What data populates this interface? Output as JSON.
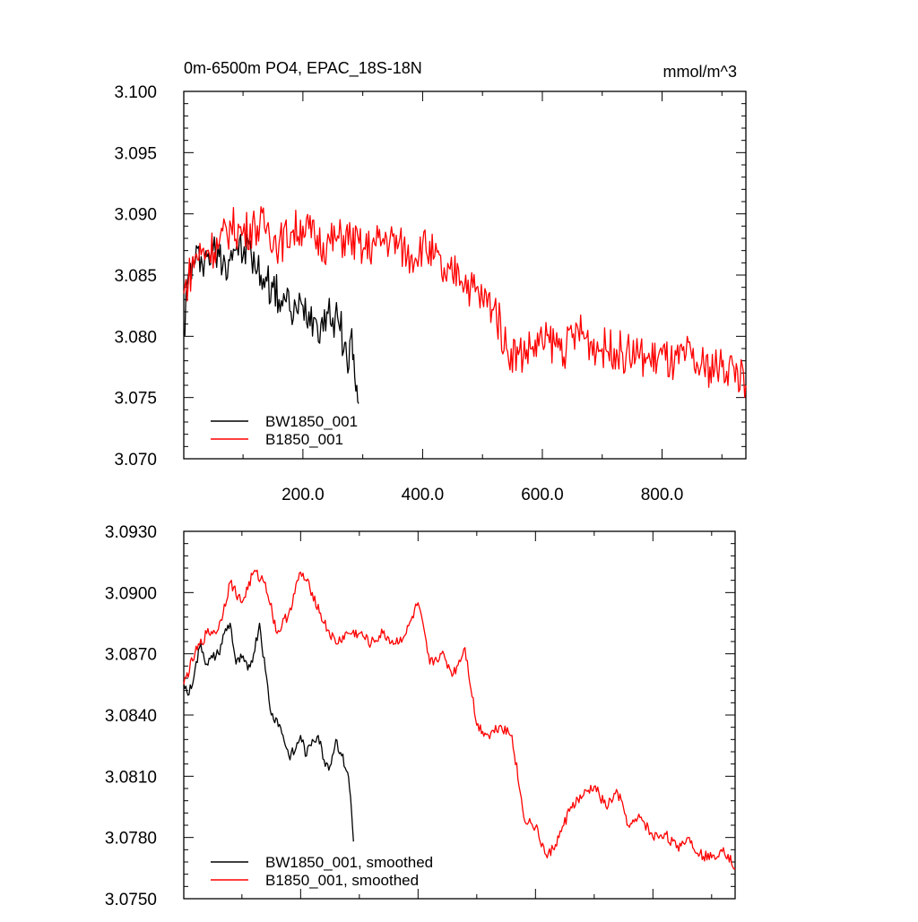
{
  "chart_data": [
    {
      "type": "line",
      "title": "0m-6500m PO4, EPAC_18S-18N",
      "units": "mmol/m^3",
      "xlim": [
        1,
        940
      ],
      "ylim": [
        3.07,
        3.1
      ],
      "x_ticks": [
        200,
        400,
        600,
        800
      ],
      "x_tick_labels": [
        "200.0",
        "400.0",
        "600.0",
        "800.0"
      ],
      "y_ticks": [
        3.07,
        3.075,
        3.08,
        3.085,
        3.09,
        3.095,
        3.1
      ],
      "y_tick_labels": [
        "3.070",
        "3.075",
        "3.080",
        "3.085",
        "3.090",
        "3.095",
        "3.100"
      ],
      "legend_position": "bottom-left",
      "series": [
        {
          "name": "BW1850_001",
          "color": "#000000",
          "x": [
            1,
            10,
            20,
            30,
            40,
            50,
            60,
            70,
            80,
            90,
            100,
            110,
            120,
            130,
            140,
            150,
            160,
            170,
            180,
            190,
            200,
            210,
            220,
            230,
            240,
            250,
            260,
            270,
            275,
            280,
            285,
            290,
            293
          ],
          "values": [
            3.0805,
            3.0855,
            3.086,
            3.0865,
            3.0865,
            3.087,
            3.0865,
            3.086,
            3.087,
            3.0875,
            3.0865,
            3.0875,
            3.0855,
            3.085,
            3.0845,
            3.084,
            3.083,
            3.083,
            3.082,
            3.082,
            3.0825,
            3.082,
            3.0815,
            3.081,
            3.082,
            3.0815,
            3.081,
            3.0795,
            3.077,
            3.08,
            3.0785,
            3.076,
            3.0745
          ]
        },
        {
          "name": "B1850_001",
          "color": "#ff0000",
          "x": [
            1,
            20,
            40,
            60,
            80,
            100,
            120,
            140,
            160,
            180,
            200,
            220,
            240,
            260,
            280,
            300,
            320,
            340,
            360,
            380,
            400,
            420,
            440,
            460,
            480,
            500,
            520,
            540,
            560,
            580,
            600,
            620,
            640,
            660,
            680,
            700,
            720,
            740,
            760,
            780,
            800,
            820,
            840,
            860,
            880,
            900,
            920,
            940
          ],
          "values": [
            3.0835,
            3.0865,
            3.087,
            3.0875,
            3.089,
            3.0885,
            3.089,
            3.089,
            3.0875,
            3.0885,
            3.089,
            3.088,
            3.0875,
            3.088,
            3.088,
            3.087,
            3.0875,
            3.088,
            3.0875,
            3.0865,
            3.0875,
            3.0865,
            3.0845,
            3.0855,
            3.084,
            3.083,
            3.0825,
            3.079,
            3.0785,
            3.079,
            3.0795,
            3.0795,
            3.079,
            3.0805,
            3.0795,
            3.079,
            3.079,
            3.0785,
            3.0785,
            3.078,
            3.0785,
            3.0775,
            3.0785,
            3.0775,
            3.0775,
            3.0775,
            3.0775,
            3.076
          ]
        }
      ]
    },
    {
      "type": "line",
      "xlim": [
        1,
        940
      ],
      "ylim": [
        3.075,
        3.093
      ],
      "x_ticks": [
        200,
        400,
        600,
        800
      ],
      "y_ticks": [
        3.075,
        3.078,
        3.081,
        3.084,
        3.087,
        3.09,
        3.093
      ],
      "y_tick_labels": [
        "3.0750",
        "3.0780",
        "3.0810",
        "3.0840",
        "3.0870",
        "3.0900",
        "3.0930"
      ],
      "legend_position": "bottom-left",
      "series": [
        {
          "name": "BW1850_001, smoothed",
          "color": "#000000",
          "x": [
            1,
            10,
            20,
            30,
            40,
            50,
            60,
            70,
            80,
            90,
            100,
            110,
            120,
            130,
            140,
            150,
            160,
            170,
            180,
            190,
            200,
            210,
            220,
            230,
            240,
            250,
            260,
            270,
            280,
            285,
            290
          ],
          "values": [
            3.0855,
            3.085,
            3.0862,
            3.0875,
            3.0865,
            3.0868,
            3.087,
            3.088,
            3.0885,
            3.0865,
            3.0868,
            3.0862,
            3.087,
            3.0885,
            3.0862,
            3.084,
            3.0838,
            3.083,
            3.082,
            3.0822,
            3.083,
            3.082,
            3.0828,
            3.083,
            3.0818,
            3.0815,
            3.0828,
            3.082,
            3.0812,
            3.08,
            3.0778
          ]
        },
        {
          "name": "B1850_001, smoothed",
          "color": "#ff0000",
          "x": [
            1,
            20,
            40,
            60,
            80,
            100,
            120,
            140,
            160,
            180,
            200,
            220,
            240,
            260,
            280,
            300,
            320,
            340,
            360,
            380,
            400,
            420,
            440,
            460,
            480,
            500,
            520,
            540,
            560,
            580,
            600,
            620,
            640,
            660,
            680,
            700,
            720,
            740,
            760,
            780,
            800,
            820,
            840,
            860,
            880,
            900,
            920,
            940
          ],
          "values": [
            3.0855,
            3.087,
            3.088,
            3.0882,
            3.0905,
            3.0895,
            3.091,
            3.0905,
            3.088,
            3.089,
            3.091,
            3.09,
            3.0885,
            3.0875,
            3.088,
            3.088,
            3.0875,
            3.088,
            3.0875,
            3.088,
            3.0895,
            3.0865,
            3.087,
            3.086,
            3.0873,
            3.0835,
            3.083,
            3.0835,
            3.083,
            3.079,
            3.0785,
            3.077,
            3.078,
            3.0795,
            3.08,
            3.0805,
            3.0795,
            3.0802,
            3.0785,
            3.079,
            3.078,
            3.0782,
            3.0775,
            3.078,
            3.0772,
            3.077,
            3.0775,
            3.0765
          ]
        }
      ]
    }
  ]
}
